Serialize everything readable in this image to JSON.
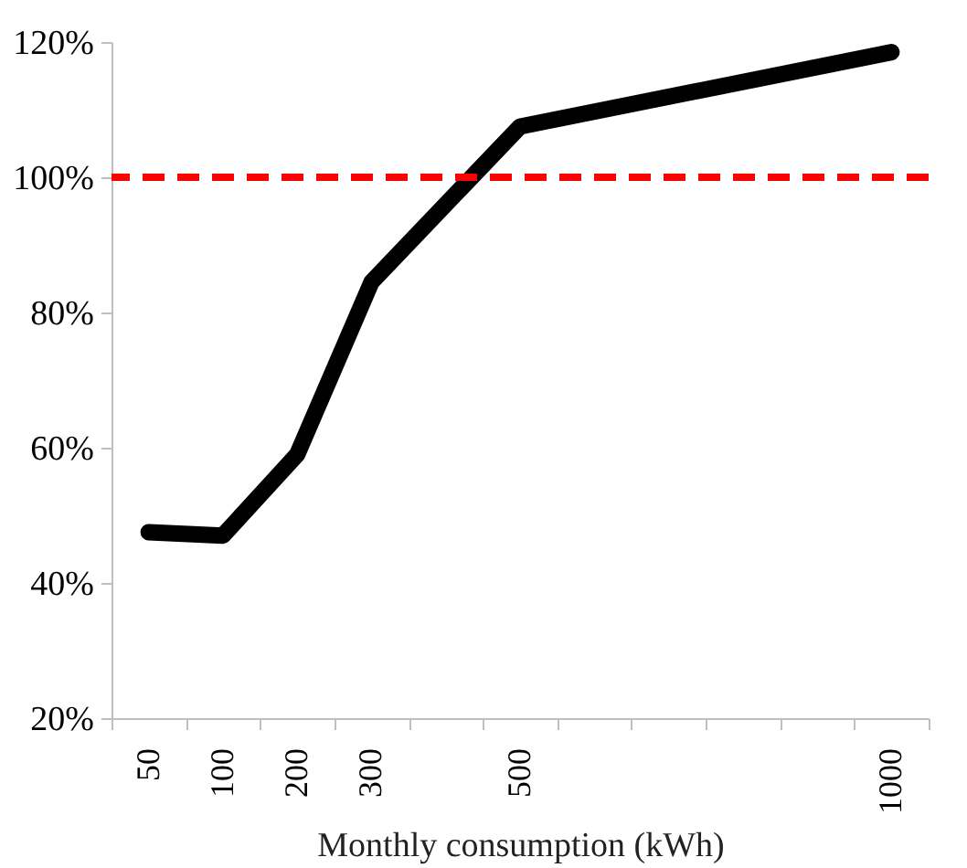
{
  "chart_data": {
    "type": "line",
    "xlabel": "Monthly consumption (kWh)",
    "categories": [
      "50",
      "100",
      "200",
      "300",
      null,
      "500",
      null,
      null,
      null,
      null,
      "1000"
    ],
    "series": [
      {
        "color": "#000000",
        "values": [
          47.5,
          47,
          59,
          84.5,
          null,
          107.5,
          null,
          null,
          null,
          null,
          118.5
        ]
      }
    ],
    "ylim": [
      20,
      120
    ],
    "yticks": [
      {
        "value": 20,
        "label": "20%"
      },
      {
        "value": 40,
        "label": "40%"
      },
      {
        "value": 60,
        "label": "60%"
      },
      {
        "value": 80,
        "label": "80%"
      },
      {
        "value": 100,
        "label": "100%"
      },
      {
        "value": 120,
        "label": "120%"
      }
    ],
    "ref_lines": [
      {
        "axis": "y",
        "value": 100,
        "color": "#ff0000",
        "line_style": "dashed"
      }
    ],
    "grid": false,
    "marker": "none",
    "line_style": "solid"
  }
}
